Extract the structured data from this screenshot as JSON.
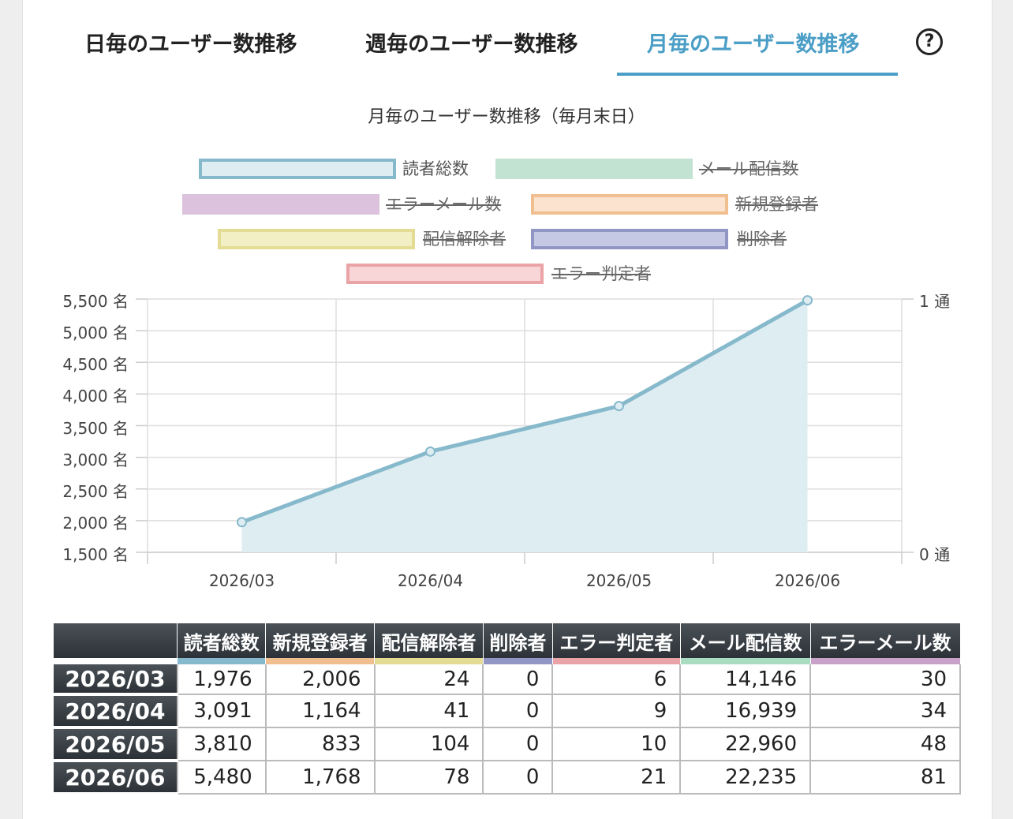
{
  "tabs": [
    {
      "label": "日毎のユーザー数推移",
      "active": false
    },
    {
      "label": "週毎のユーザー数推移",
      "active": false
    },
    {
      "label": "月毎のユーザー数推移",
      "active": true
    }
  ],
  "help_label": "?",
  "chart_data": {
    "type": "area",
    "title": "月毎のユーザー数推移（毎月末日）",
    "categories": [
      "2026/03",
      "2026/04",
      "2026/05",
      "2026/06"
    ],
    "series": [
      {
        "name": "読者総数",
        "values": [
          1976,
          3091,
          3810,
          5480
        ],
        "axis": "left",
        "visible": true,
        "color": "#86b9cb",
        "fill": "#deedf2"
      },
      {
        "name": "メール配信数",
        "values": [
          14146,
          16939,
          22960,
          22235
        ],
        "axis": "right",
        "visible": false,
        "color": "#c2e3d2",
        "fill": "#c2e3d2"
      },
      {
        "name": "エラーメール数",
        "values": [
          30,
          34,
          48,
          81
        ],
        "axis": "right",
        "visible": false,
        "color": "#dcc2dc",
        "fill": "#dcc2dc"
      },
      {
        "name": "新規登録者",
        "values": [
          2006,
          1164,
          833,
          1768
        ],
        "axis": "left",
        "visible": false,
        "color": "#f1bf8f",
        "fill": "#fbe3cf"
      },
      {
        "name": "配信解除者",
        "values": [
          24,
          41,
          104,
          78
        ],
        "axis": "left",
        "visible": false,
        "color": "#e4dc94",
        "fill": "#f3efc5"
      },
      {
        "name": "削除者",
        "values": [
          0,
          0,
          0,
          0
        ],
        "axis": "left",
        "visible": false,
        "color": "#9196c4",
        "fill": "#c6c9e4"
      },
      {
        "name": "エラー判定者",
        "values": [
          6,
          9,
          10,
          21
        ],
        "axis": "left",
        "visible": false,
        "color": "#eaa3a6",
        "fill": "#f8d5d6"
      }
    ],
    "y_left": {
      "min": 1500,
      "max": 5500,
      "step": 500,
      "unit": "名"
    },
    "y_right": {
      "min": 0,
      "max": 1,
      "unit": "通"
    },
    "grid": true,
    "legend_position": "top"
  },
  "table": {
    "columns": [
      {
        "label": "読者総数",
        "color": "#86b9cb"
      },
      {
        "label": "新規登録者",
        "color": "#f1bf8f"
      },
      {
        "label": "配信解除者",
        "color": "#e4dc94"
      },
      {
        "label": "削除者",
        "color": "#9196c4"
      },
      {
        "label": "エラー判定者",
        "color": "#eaa3a6"
      },
      {
        "label": "メール配信数",
        "color": "#a9dcc0"
      },
      {
        "label": "エラーメール数",
        "color": "#c9a2c9"
      }
    ],
    "rows": [
      {
        "label": "2026/03",
        "cells": [
          "1,976",
          "2,006",
          "24",
          "0",
          "6",
          "14,146",
          "30"
        ]
      },
      {
        "label": "2026/04",
        "cells": [
          "3,091",
          "1,164",
          "41",
          "0",
          "9",
          "16,939",
          "34"
        ]
      },
      {
        "label": "2026/05",
        "cells": [
          "3,810",
          "833",
          "104",
          "0",
          "10",
          "22,960",
          "48"
        ]
      },
      {
        "label": "2026/06",
        "cells": [
          "5,480",
          "1,768",
          "78",
          "0",
          "21",
          "22,235",
          "81"
        ]
      }
    ]
  }
}
